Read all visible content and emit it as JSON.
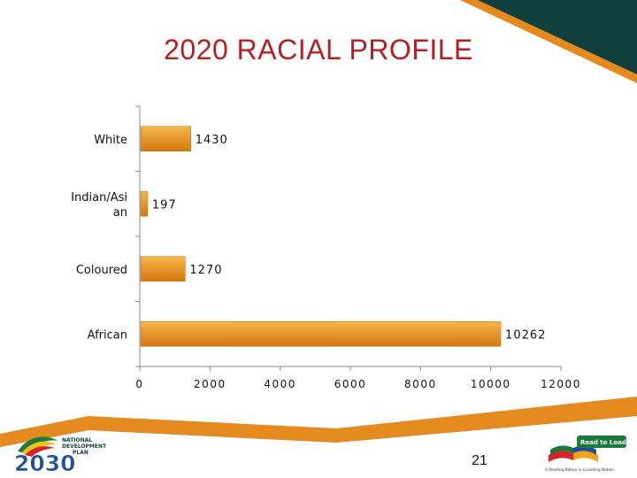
{
  "title": "2020 RACIAL PROFILE",
  "page_number": "21",
  "colors": {
    "bar_top": "#f6b64a",
    "bar_bottom": "#d4780f",
    "title": "#b41e24",
    "teal": "#0e3f3c",
    "orange": "#e48a1e"
  },
  "chart_data": {
    "type": "bar",
    "orientation": "horizontal",
    "categories": [
      "White",
      "Indian/Asian",
      "Coloured",
      "African"
    ],
    "category_labels": [
      "White",
      "Indian/Asi\nan",
      "Coloured",
      "African"
    ],
    "values": [
      1430,
      197,
      1270,
      10262
    ],
    "value_labels": [
      "1430",
      "197",
      "1270",
      "10262"
    ],
    "xlim": [
      0,
      12000
    ],
    "xticks": [
      0,
      2000,
      4000,
      6000,
      8000,
      10000,
      12000
    ],
    "xtick_labels": [
      "0",
      "2000",
      "4000",
      "6000",
      "8000",
      "10000",
      "12000"
    ],
    "title": "2020 RACIAL PROFILE",
    "xlabel": "",
    "ylabel": "",
    "grid": false,
    "legend": "none"
  },
  "logos": {
    "left": {
      "line1": "NATIONAL",
      "line2": "DEVELOPMENT",
      "line3": "PLAN",
      "year": "2030"
    },
    "right": {
      "name": "Read to Lead",
      "tagline": "A Reading Nation is a Leading Nation"
    }
  }
}
